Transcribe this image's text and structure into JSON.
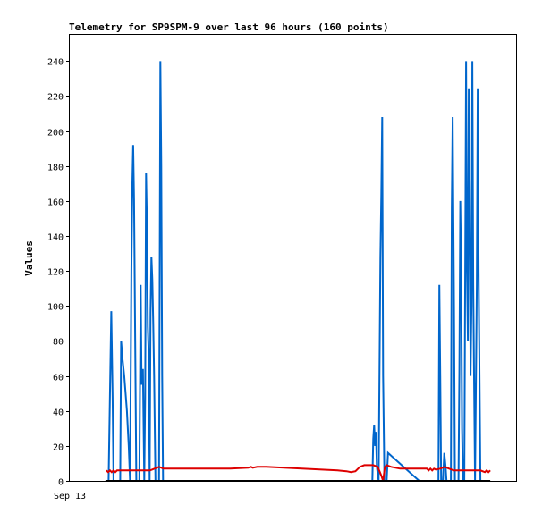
{
  "chart_data": {
    "type": "line",
    "title": "Telemetry for SP9SPM-9 over last 96 hours (160 points)",
    "ylabel": "Values",
    "xlabel": "",
    "x_tick_labels": [
      "Sep 13"
    ],
    "ylim": [
      0,
      255
    ],
    "y_ticks": [
      0,
      20,
      40,
      60,
      80,
      100,
      120,
      140,
      160,
      180,
      200,
      220,
      240
    ],
    "x_range": [
      0,
      100
    ],
    "grid": false,
    "legend": "none",
    "series": [
      {
        "color": "#0066cc",
        "points": [
          [
            8.7,
            0
          ],
          [
            9.3,
            97
          ],
          [
            9.6,
            48
          ],
          [
            9.8,
            0
          ],
          [
            11.3,
            0
          ],
          [
            11.5,
            80
          ],
          [
            11.8,
            70
          ],
          [
            12.2,
            60
          ],
          [
            12.8,
            40
          ],
          [
            13.2,
            20
          ],
          [
            13.5,
            0
          ],
          [
            13.8,
            120
          ],
          [
            14.0,
            168
          ],
          [
            14.2,
            192
          ],
          [
            14.4,
            160
          ],
          [
            14.6,
            96
          ],
          [
            14.9,
            0
          ],
          [
            15.6,
            0
          ],
          [
            15.9,
            112
          ],
          [
            16.1,
            55
          ],
          [
            16.4,
            64
          ],
          [
            16.7,
            0
          ],
          [
            16.9,
            48
          ],
          [
            17.1,
            176
          ],
          [
            17.3,
            147
          ],
          [
            17.5,
            88
          ],
          [
            17.7,
            72
          ],
          [
            17.9,
            0
          ],
          [
            18.1,
            96
          ],
          [
            18.3,
            128
          ],
          [
            18.5,
            115
          ],
          [
            18.7,
            90
          ],
          [
            18.9,
            60
          ],
          [
            19.2,
            0
          ],
          [
            19.6,
            0
          ],
          [
            20.0,
            0
          ],
          [
            20.3,
            240
          ],
          [
            20.5,
            180
          ],
          [
            20.7,
            60
          ],
          [
            20.9,
            0
          ],
          [
            67.8,
            0
          ],
          [
            68.0,
            24
          ],
          [
            68.2,
            32
          ],
          [
            68.4,
            20
          ],
          [
            68.6,
            28
          ],
          [
            68.8,
            8
          ],
          [
            69.2,
            0
          ],
          [
            69.4,
            64
          ],
          [
            69.6,
            128
          ],
          [
            69.8,
            163
          ],
          [
            70.0,
            208
          ],
          [
            70.2,
            60
          ],
          [
            70.5,
            0
          ],
          [
            71.0,
            0
          ],
          [
            71.3,
            16
          ],
          [
            78.3,
            0
          ],
          [
            81.3,
            0
          ],
          [
            82.6,
            0
          ],
          [
            82.8,
            112
          ],
          [
            83.0,
            60
          ],
          [
            83.2,
            0
          ],
          [
            83.6,
            0
          ],
          [
            83.9,
            16
          ],
          [
            84.2,
            8
          ],
          [
            84.4,
            0
          ],
          [
            85.4,
            0
          ],
          [
            85.6,
            156
          ],
          [
            85.8,
            208
          ],
          [
            86.1,
            100
          ],
          [
            86.3,
            0
          ],
          [
            87.1,
            0
          ],
          [
            87.3,
            64
          ],
          [
            87.5,
            160
          ],
          [
            87.7,
            120
          ],
          [
            87.9,
            30
          ],
          [
            88.1,
            0
          ],
          [
            88.4,
            0
          ],
          [
            88.8,
            240
          ],
          [
            89.0,
            120
          ],
          [
            89.2,
            80
          ],
          [
            89.4,
            224
          ],
          [
            89.6,
            168
          ],
          [
            89.8,
            60
          ],
          [
            90.0,
            100
          ],
          [
            90.2,
            240
          ],
          [
            90.4,
            112
          ],
          [
            90.6,
            55
          ],
          [
            90.8,
            0
          ],
          [
            91.2,
            112
          ],
          [
            91.4,
            224
          ],
          [
            91.6,
            120
          ],
          [
            91.8,
            60
          ],
          [
            92.0,
            0
          ]
        ]
      },
      {
        "color": "#dd0000",
        "points": [
          [
            8.2,
            6
          ],
          [
            8.6,
            5
          ],
          [
            9.0,
            6
          ],
          [
            9.4,
            5
          ],
          [
            9.8,
            6
          ],
          [
            10.2,
            5
          ],
          [
            10.6,
            6
          ],
          [
            11.0,
            6
          ],
          [
            12.0,
            6
          ],
          [
            14.0,
            6
          ],
          [
            16.0,
            6
          ],
          [
            18.0,
            6
          ],
          [
            19.0,
            7
          ],
          [
            20.0,
            8
          ],
          [
            21.0,
            7
          ],
          [
            24.0,
            7
          ],
          [
            28.0,
            7
          ],
          [
            31.0,
            7
          ],
          [
            36.0,
            7
          ],
          [
            40.0,
            7.5
          ],
          [
            40.6,
            8
          ],
          [
            41.0,
            7.5
          ],
          [
            42.0,
            8
          ],
          [
            44.0,
            8
          ],
          [
            48.0,
            7.5
          ],
          [
            52.0,
            7
          ],
          [
            56.0,
            6.5
          ],
          [
            60.0,
            6
          ],
          [
            62.0,
            5.5
          ],
          [
            63.0,
            5
          ],
          [
            64.0,
            5.5
          ],
          [
            65.0,
            8
          ],
          [
            66.0,
            9
          ],
          [
            68.0,
            9
          ],
          [
            69.0,
            8
          ],
          [
            69.8,
            3
          ],
          [
            70.2,
            0
          ],
          [
            70.6,
            8
          ],
          [
            71.0,
            9
          ],
          [
            72.0,
            8
          ],
          [
            74.0,
            7
          ],
          [
            78.0,
            7
          ],
          [
            80.0,
            7
          ],
          [
            80.4,
            6
          ],
          [
            80.8,
            7
          ],
          [
            81.2,
            6
          ],
          [
            81.6,
            7
          ],
          [
            82.0,
            6.5
          ],
          [
            83.0,
            7
          ],
          [
            84.0,
            8
          ],
          [
            85.0,
            7
          ],
          [
            86.0,
            6
          ],
          [
            88.0,
            6
          ],
          [
            90.0,
            6
          ],
          [
            92.0,
            6
          ],
          [
            93.0,
            5
          ],
          [
            93.4,
            6
          ],
          [
            93.8,
            5
          ],
          [
            94.2,
            6
          ]
        ]
      },
      {
        "color": "#000000",
        "points": [
          [
            8.0,
            0
          ],
          [
            94.2,
            0
          ]
        ]
      }
    ]
  }
}
